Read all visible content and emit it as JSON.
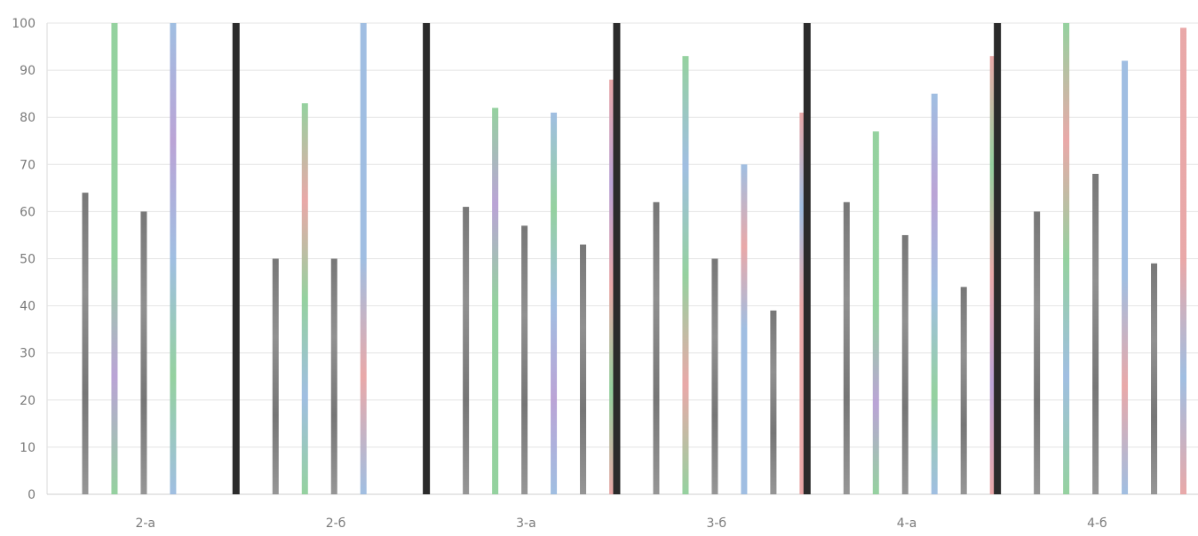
{
  "chart_data": {
    "type": "bar",
    "title": "",
    "xlabel": "",
    "ylabel": "",
    "ylim": [
      0,
      100
    ],
    "yticks": [
      0,
      10,
      20,
      30,
      40,
      50,
      60,
      70,
      80,
      90,
      100
    ],
    "grid": true,
    "legend": "none",
    "categories": [
      "2-а",
      "2-б",
      "3-а",
      "3-б",
      "4-а",
      "4-б"
    ],
    "bars_per_group": 6,
    "series_colors": [
      "#7c7c7c",
      "#8fcf9a",
      "#7c7c7c",
      "#9bbbe0",
      "#7c7c7c",
      "#e8a4a4"
    ],
    "groups": [
      {
        "label": "2-а",
        "values": [
          64,
          100,
          60,
          100
        ]
      },
      {
        "label": "2-б",
        "values": [
          50,
          83,
          50,
          100
        ]
      },
      {
        "label": "3-а",
        "values": [
          61,
          82,
          57,
          81,
          53,
          88
        ]
      },
      {
        "label": "3-б",
        "values": [
          62,
          93,
          50,
          70,
          39,
          81
        ]
      },
      {
        "label": "4-а",
        "values": [
          62,
          77,
          55,
          85,
          44,
          93
        ]
      },
      {
        "label": "4-б",
        "values": [
          60,
          100,
          68,
          92,
          49,
          99
        ]
      }
    ],
    "separators": [
      {
        "after_group": "2-а",
        "value": 100
      },
      {
        "after_group": "2-б",
        "value": 100
      },
      {
        "after_group": "3-а",
        "value": 100
      },
      {
        "after_group": "3-б",
        "value": 100
      },
      {
        "after_group": "4-а",
        "value": 100
      }
    ]
  }
}
